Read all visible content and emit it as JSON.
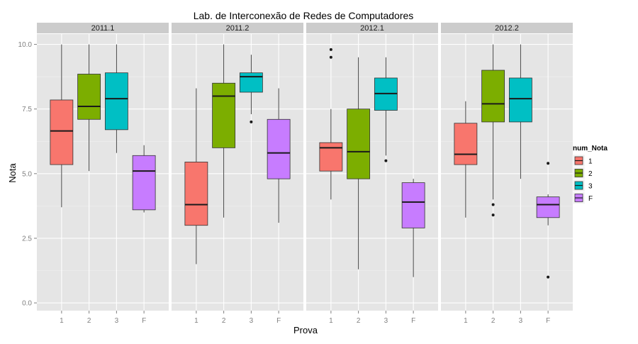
{
  "chart_data": {
    "type": "box",
    "title": "Lab. de Interconexão de Redes de Computadores",
    "xlabel": "Prova",
    "ylabel": "Nota",
    "ylim": [
      -0.3,
      10.4
    ],
    "yticks": [
      "0.0",
      "2.5",
      "5.0",
      "7.5",
      "10.0"
    ],
    "yticks_values": [
      0,
      2.5,
      5,
      7.5,
      10
    ],
    "categories": [
      "1",
      "2",
      "3",
      "F"
    ],
    "legend": {
      "title": "num_Nota",
      "position": "right",
      "entries": [
        {
          "label": "1",
          "color": "#F8766D"
        },
        {
          "label": "2",
          "color": "#7CAE00"
        },
        {
          "label": "3",
          "color": "#00BFC4"
        },
        {
          "label": "F",
          "color": "#C77CFF"
        }
      ]
    },
    "panel_background": "#E5E5E5",
    "strip_background": "#CCCCCC",
    "facets": [
      {
        "label": "2011.1",
        "boxes": [
          {
            "category": "1",
            "min": 3.7,
            "q1": 5.35,
            "median": 6.65,
            "q3": 7.85,
            "max": 10.0,
            "outliers": []
          },
          {
            "category": "2",
            "min": 5.1,
            "q1": 7.1,
            "median": 7.6,
            "q3": 8.85,
            "max": 10.0,
            "outliers": []
          },
          {
            "category": "3",
            "min": 5.8,
            "q1": 6.7,
            "median": 7.9,
            "q3": 8.9,
            "max": 10.0,
            "outliers": []
          },
          {
            "category": "F",
            "min": 3.5,
            "q1": 3.6,
            "median": 5.1,
            "q3": 5.7,
            "max": 6.1,
            "outliers": []
          }
        ]
      },
      {
        "label": "2011.2",
        "boxes": [
          {
            "category": "1",
            "min": 1.5,
            "q1": 3.0,
            "median": 3.8,
            "q3": 5.45,
            "max": 8.3,
            "outliers": []
          },
          {
            "category": "2",
            "min": 3.3,
            "q1": 6.0,
            "median": 8.0,
            "q3": 8.5,
            "max": 10.0,
            "outliers": []
          },
          {
            "category": "3",
            "min": 7.3,
            "q1": 8.15,
            "median": 8.75,
            "q3": 8.9,
            "max": 9.6,
            "outliers": [
              7.0
            ]
          },
          {
            "category": "F",
            "min": 3.1,
            "q1": 4.8,
            "median": 5.8,
            "q3": 7.1,
            "max": 8.3,
            "outliers": []
          }
        ]
      },
      {
        "label": "2012.1",
        "boxes": [
          {
            "category": "1",
            "min": 4.0,
            "q1": 5.1,
            "median": 6.0,
            "q3": 6.2,
            "max": 7.5,
            "outliers": [
              9.8,
              9.5
            ]
          },
          {
            "category": "2",
            "min": 1.3,
            "q1": 4.8,
            "median": 5.85,
            "q3": 7.5,
            "max": 9.5,
            "outliers": []
          },
          {
            "category": "3",
            "min": 5.7,
            "q1": 7.45,
            "median": 8.1,
            "q3": 8.7,
            "max": 9.5,
            "outliers": [
              5.5
            ]
          },
          {
            "category": "F",
            "min": 1.0,
            "q1": 2.9,
            "median": 3.9,
            "q3": 4.65,
            "max": 4.8,
            "outliers": []
          }
        ]
      },
      {
        "label": "2012.2",
        "boxes": [
          {
            "category": "1",
            "min": 3.3,
            "q1": 5.35,
            "median": 5.75,
            "q3": 6.95,
            "max": 7.8,
            "outliers": []
          },
          {
            "category": "2",
            "min": 4.0,
            "q1": 7.0,
            "median": 7.7,
            "q3": 9.0,
            "max": 10.0,
            "outliers": [
              3.8,
              3.4
            ]
          },
          {
            "category": "3",
            "min": 4.8,
            "q1": 7.0,
            "median": 7.9,
            "q3": 8.7,
            "max": 10.0,
            "outliers": []
          },
          {
            "category": "F",
            "min": 3.0,
            "q1": 3.3,
            "median": 3.8,
            "q3": 4.1,
            "max": 4.2,
            "outliers": [
              5.4,
              1.0
            ]
          }
        ]
      }
    ]
  }
}
